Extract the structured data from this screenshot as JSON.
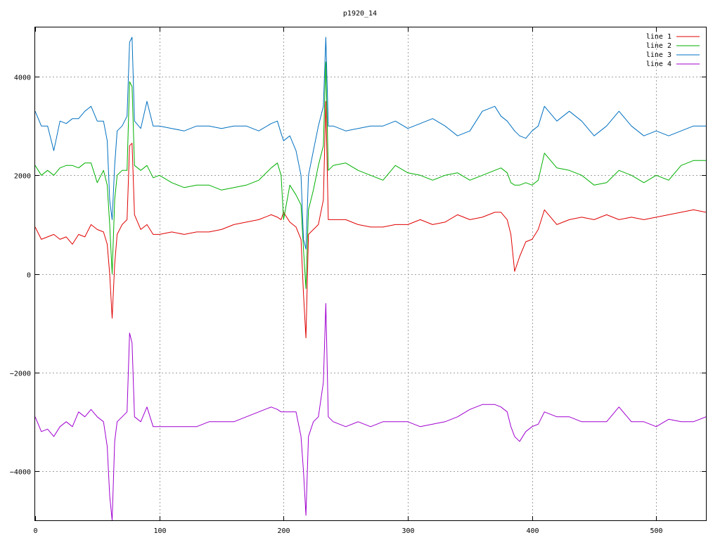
{
  "chart_data": {
    "type": "line",
    "title": "p1920_14",
    "xlabel": "",
    "ylabel": "",
    "xlim": [
      0,
      540
    ],
    "ylim": [
      -5000,
      5000
    ],
    "xticks": [
      0,
      100,
      200,
      300,
      400,
      500
    ],
    "yticks": [
      -4000,
      -2000,
      0,
      2000,
      4000
    ],
    "xtick_labels": [
      "0",
      "100",
      "200",
      "300",
      "400",
      "500"
    ],
    "ytick_labels": [
      "−4000",
      "−2000",
      "0",
      "2000",
      "4000"
    ],
    "grid": true,
    "legend_position": "top-right",
    "x": [
      0,
      5,
      10,
      15,
      20,
      25,
      30,
      35,
      40,
      45,
      50,
      55,
      58,
      60,
      62,
      64,
      66,
      70,
      74,
      76,
      78,
      80,
      85,
      90,
      95,
      100,
      110,
      120,
      130,
      140,
      150,
      160,
      170,
      180,
      190,
      195,
      198,
      200,
      205,
      210,
      214,
      216,
      218,
      220,
      224,
      228,
      232,
      234,
      236,
      240,
      250,
      260,
      270,
      280,
      290,
      300,
      310,
      320,
      330,
      340,
      350,
      360,
      370,
      375,
      380,
      383,
      386,
      390,
      395,
      400,
      405,
      410,
      420,
      430,
      440,
      450,
      460,
      470,
      480,
      490,
      500,
      510,
      520,
      530,
      540
    ],
    "series": [
      {
        "name": "line 1",
        "color": "#e00000",
        "values": [
          950,
          700,
          750,
          800,
          700,
          750,
          600,
          800,
          750,
          1000,
          900,
          850,
          600,
          0,
          -900,
          200,
          800,
          1000,
          1100,
          2600,
          2650,
          1200,
          900,
          1000,
          800,
          800,
          850,
          800,
          850,
          850,
          900,
          1000,
          1050,
          1100,
          1200,
          1150,
          1100,
          1250,
          1050,
          950,
          700,
          -400,
          -1300,
          800,
          900,
          1000,
          1500,
          3500,
          1100,
          1100,
          1100,
          1000,
          950,
          950,
          1000,
          1000,
          1100,
          1000,
          1050,
          1200,
          1100,
          1150,
          1250,
          1250,
          1100,
          800,
          50,
          350,
          650,
          700,
          900,
          1300,
          1000,
          1100,
          1150,
          1100,
          1200,
          1100,
          1150,
          1100,
          1150,
          1200,
          1250,
          1300,
          1250
        ]
      },
      {
        "name": "line 2",
        "color": "#00b000",
        "values": [
          2200,
          2000,
          2100,
          2000,
          2150,
          2200,
          2200,
          2150,
          2250,
          2250,
          1850,
          2100,
          1800,
          1000,
          0,
          1500,
          2000,
          2100,
          2100,
          3900,
          3800,
          2200,
          2100,
          2200,
          1950,
          2000,
          1850,
          1750,
          1800,
          1800,
          1700,
          1750,
          1800,
          1900,
          2150,
          2250,
          2000,
          1100,
          1800,
          1600,
          1400,
          500,
          -300,
          1300,
          1700,
          2200,
          2600,
          4300,
          2100,
          2200,
          2250,
          2100,
          2000,
          1900,
          2200,
          2050,
          2000,
          1900,
          2000,
          2050,
          1900,
          2000,
          2100,
          2150,
          2050,
          1850,
          1800,
          1800,
          1850,
          1800,
          1900,
          2450,
          2150,
          2100,
          2000,
          1800,
          1850,
          2100,
          2000,
          1850,
          2000,
          1900,
          2200,
          2300,
          2300
        ]
      },
      {
        "name": "line 3",
        "color": "#0070c0",
        "values": [
          3300,
          3000,
          3000,
          2500,
          3100,
          3050,
          3150,
          3150,
          3300,
          3400,
          3100,
          3100,
          2700,
          1500,
          1100,
          2200,
          2900,
          3000,
          3200,
          4700,
          4800,
          3100,
          2950,
          3500,
          3000,
          3000,
          2950,
          2900,
          3000,
          3000,
          2950,
          3000,
          3000,
          2900,
          3050,
          3100,
          2850,
          2700,
          2800,
          2500,
          2000,
          700,
          500,
          2000,
          2500,
          3000,
          3400,
          4800,
          3000,
          3000,
          2900,
          2950,
          3000,
          3000,
          3100,
          2950,
          3050,
          3150,
          3000,
          2800,
          2900,
          3300,
          3400,
          3200,
          3100,
          3000,
          2900,
          2800,
          2750,
          2900,
          3000,
          3400,
          3100,
          3300,
          3100,
          2800,
          3000,
          3300,
          3000,
          2800,
          2900,
          2800,
          2900,
          3000,
          3000
        ]
      },
      {
        "name": "line 4",
        "color": "#a000d0",
        "values": [
          -2900,
          -3200,
          -3150,
          -3300,
          -3100,
          -3000,
          -3100,
          -2800,
          -2900,
          -2750,
          -2900,
          -3000,
          -3500,
          -4500,
          -5000,
          -3400,
          -3000,
          -2900,
          -2800,
          -1200,
          -1400,
          -2900,
          -3000,
          -2700,
          -3100,
          -3100,
          -3100,
          -3100,
          -3100,
          -3000,
          -3000,
          -3000,
          -2900,
          -2800,
          -2700,
          -2750,
          -2800,
          -2800,
          -2800,
          -2800,
          -3300,
          -4000,
          -4900,
          -3300,
          -3000,
          -2900,
          -2200,
          -600,
          -2900,
          -3000,
          -3100,
          -3000,
          -3100,
          -3000,
          -3000,
          -3000,
          -3100,
          -3050,
          -3000,
          -2900,
          -2750,
          -2650,
          -2650,
          -2700,
          -2800,
          -3100,
          -3300,
          -3400,
          -3200,
          -3100,
          -3050,
          -2800,
          -2900,
          -2900,
          -3000,
          -3000,
          -3000,
          -2700,
          -3000,
          -3000,
          -3100,
          -2950,
          -3000,
          -3000,
          -2900
        ]
      }
    ]
  }
}
